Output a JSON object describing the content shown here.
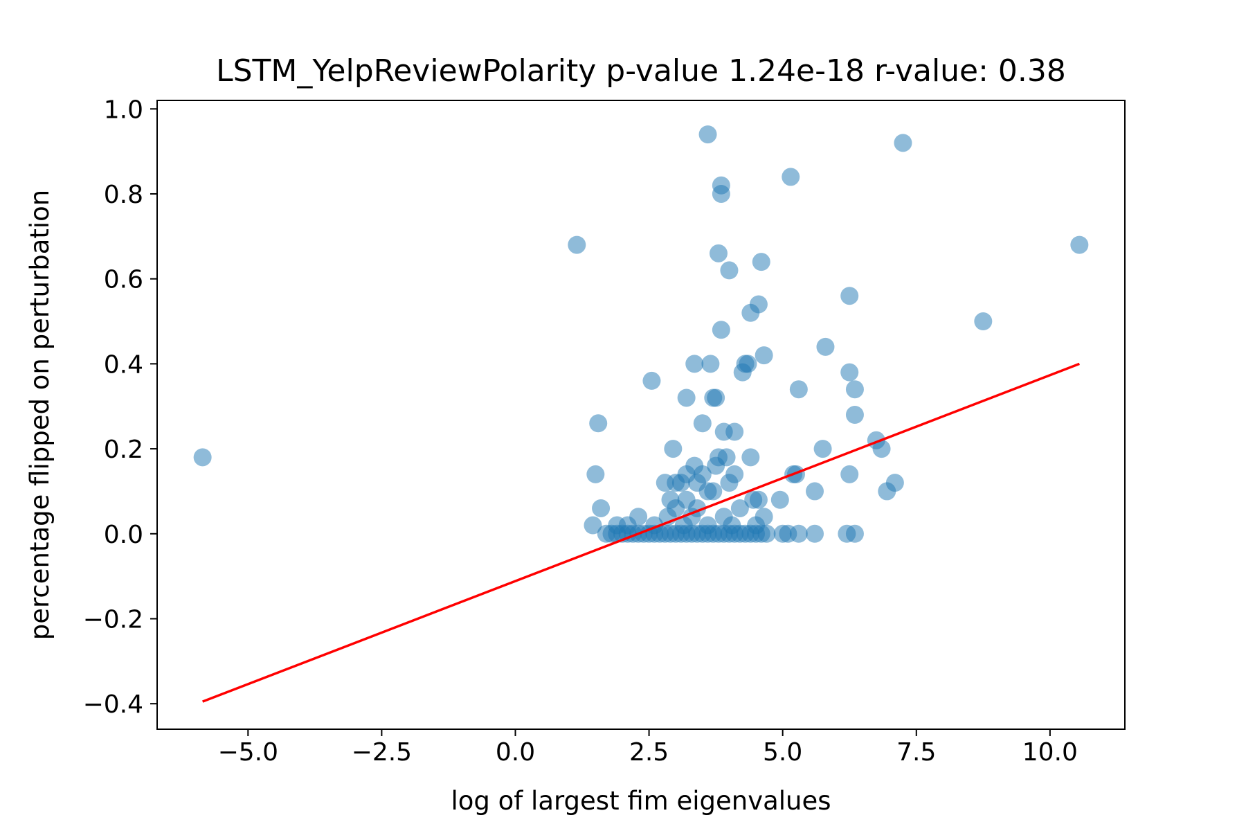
{
  "chart_data": {
    "type": "scatter",
    "title": "LSTM_YelpReviewPolarity p-value 1.24e-18 r-value: 0.38",
    "xlabel": "log of largest fim eigenvalues",
    "ylabel": "percentage flipped on perturbation",
    "xlim": [
      -6.7,
      11.4
    ],
    "ylim": [
      -0.46,
      1.02
    ],
    "xticks": [
      -5.0,
      -2.5,
      0.0,
      2.5,
      5.0,
      7.5,
      10.0
    ],
    "xtick_labels": [
      "−5.0",
      "−2.5",
      "0.0",
      "2.5",
      "5.0",
      "7.5",
      "10.0"
    ],
    "yticks": [
      1.0,
      0.8,
      0.6,
      0.4,
      0.2,
      0.0,
      -0.2,
      -0.4
    ],
    "ytick_labels": [
      "1.0",
      "0.8",
      "0.6",
      "0.4",
      "0.2",
      "0.0",
      "−0.2",
      "−0.4"
    ],
    "grid": false,
    "point_color": "#1f77b4",
    "point_alpha": 0.5,
    "fit_line_color": "#ff0000",
    "series": [
      {
        "name": "samples",
        "points": [
          [
            -5.85,
            0.18
          ],
          [
            1.15,
            0.68
          ],
          [
            1.55,
            0.26
          ],
          [
            1.5,
            0.14
          ],
          [
            1.6,
            0.06
          ],
          [
            1.45,
            0.02
          ],
          [
            2.55,
            0.36
          ],
          [
            3.6,
            0.94
          ],
          [
            3.85,
            0.82
          ],
          [
            3.85,
            0.8
          ],
          [
            3.8,
            0.66
          ],
          [
            4.0,
            0.62
          ],
          [
            4.6,
            0.64
          ],
          [
            4.55,
            0.54
          ],
          [
            4.4,
            0.52
          ],
          [
            3.85,
            0.48
          ],
          [
            4.65,
            0.42
          ],
          [
            3.35,
            0.4
          ],
          [
            3.65,
            0.4
          ],
          [
            4.3,
            0.4
          ],
          [
            4.35,
            0.4
          ],
          [
            4.25,
            0.38
          ],
          [
            3.75,
            0.32
          ],
          [
            3.7,
            0.32
          ],
          [
            3.2,
            0.32
          ],
          [
            3.5,
            0.26
          ],
          [
            3.9,
            0.24
          ],
          [
            4.1,
            0.24
          ],
          [
            2.95,
            0.2
          ],
          [
            3.8,
            0.18
          ],
          [
            3.95,
            0.18
          ],
          [
            4.4,
            0.18
          ],
          [
            3.75,
            0.16
          ],
          [
            3.35,
            0.16
          ],
          [
            3.2,
            0.14
          ],
          [
            3.5,
            0.14
          ],
          [
            4.1,
            0.14
          ],
          [
            2.8,
            0.12
          ],
          [
            3.0,
            0.12
          ],
          [
            3.1,
            0.12
          ],
          [
            3.4,
            0.12
          ],
          [
            4.0,
            0.12
          ],
          [
            3.6,
            0.1
          ],
          [
            3.7,
            0.1
          ],
          [
            2.9,
            0.08
          ],
          [
            3.2,
            0.08
          ],
          [
            4.45,
            0.08
          ],
          [
            4.55,
            0.08
          ],
          [
            3.0,
            0.06
          ],
          [
            3.4,
            0.06
          ],
          [
            4.2,
            0.06
          ],
          [
            2.3,
            0.04
          ],
          [
            2.85,
            0.04
          ],
          [
            3.3,
            0.04
          ],
          [
            3.9,
            0.04
          ],
          [
            4.65,
            0.04
          ],
          [
            1.9,
            0.02
          ],
          [
            2.1,
            0.02
          ],
          [
            2.6,
            0.02
          ],
          [
            3.15,
            0.02
          ],
          [
            3.6,
            0.02
          ],
          [
            4.05,
            0.02
          ],
          [
            4.5,
            0.02
          ],
          [
            5.15,
            0.84
          ],
          [
            7.25,
            0.92
          ],
          [
            10.55,
            0.68
          ],
          [
            6.25,
            0.56
          ],
          [
            8.75,
            0.5
          ],
          [
            5.8,
            0.44
          ],
          [
            6.25,
            0.38
          ],
          [
            6.35,
            0.34
          ],
          [
            5.3,
            0.34
          ],
          [
            6.35,
            0.28
          ],
          [
            6.75,
            0.22
          ],
          [
            6.85,
            0.2
          ],
          [
            5.75,
            0.2
          ],
          [
            5.25,
            0.14
          ],
          [
            5.2,
            0.14
          ],
          [
            6.25,
            0.14
          ],
          [
            7.1,
            0.12
          ],
          [
            5.6,
            0.1
          ],
          [
            6.95,
            0.1
          ],
          [
            4.95,
            0.08
          ],
          [
            1.7,
            0.0
          ],
          [
            1.8,
            0.0
          ],
          [
            1.9,
            0.0
          ],
          [
            2.0,
            0.0
          ],
          [
            2.1,
            0.0
          ],
          [
            2.2,
            0.0
          ],
          [
            2.3,
            0.0
          ],
          [
            2.4,
            0.0
          ],
          [
            2.5,
            0.0
          ],
          [
            2.6,
            0.0
          ],
          [
            2.7,
            0.0
          ],
          [
            2.8,
            0.0
          ],
          [
            2.9,
            0.0
          ],
          [
            3.0,
            0.0
          ],
          [
            3.1,
            0.0
          ],
          [
            3.2,
            0.0
          ],
          [
            3.3,
            0.0
          ],
          [
            3.4,
            0.0
          ],
          [
            3.5,
            0.0
          ],
          [
            3.6,
            0.0
          ],
          [
            3.7,
            0.0
          ],
          [
            3.8,
            0.0
          ],
          [
            3.9,
            0.0
          ],
          [
            4.0,
            0.0
          ],
          [
            4.1,
            0.0
          ],
          [
            4.2,
            0.0
          ],
          [
            4.3,
            0.0
          ],
          [
            4.4,
            0.0
          ],
          [
            4.5,
            0.0
          ],
          [
            4.6,
            0.0
          ],
          [
            4.7,
            0.0
          ],
          [
            5.0,
            0.0
          ],
          [
            5.1,
            0.0
          ],
          [
            5.3,
            0.0
          ],
          [
            5.6,
            0.0
          ],
          [
            6.2,
            0.0
          ],
          [
            6.35,
            0.0
          ]
        ]
      }
    ],
    "fit_line": {
      "x": [
        -5.85,
        10.55
      ],
      "y": [
        -0.395,
        0.4
      ]
    }
  }
}
